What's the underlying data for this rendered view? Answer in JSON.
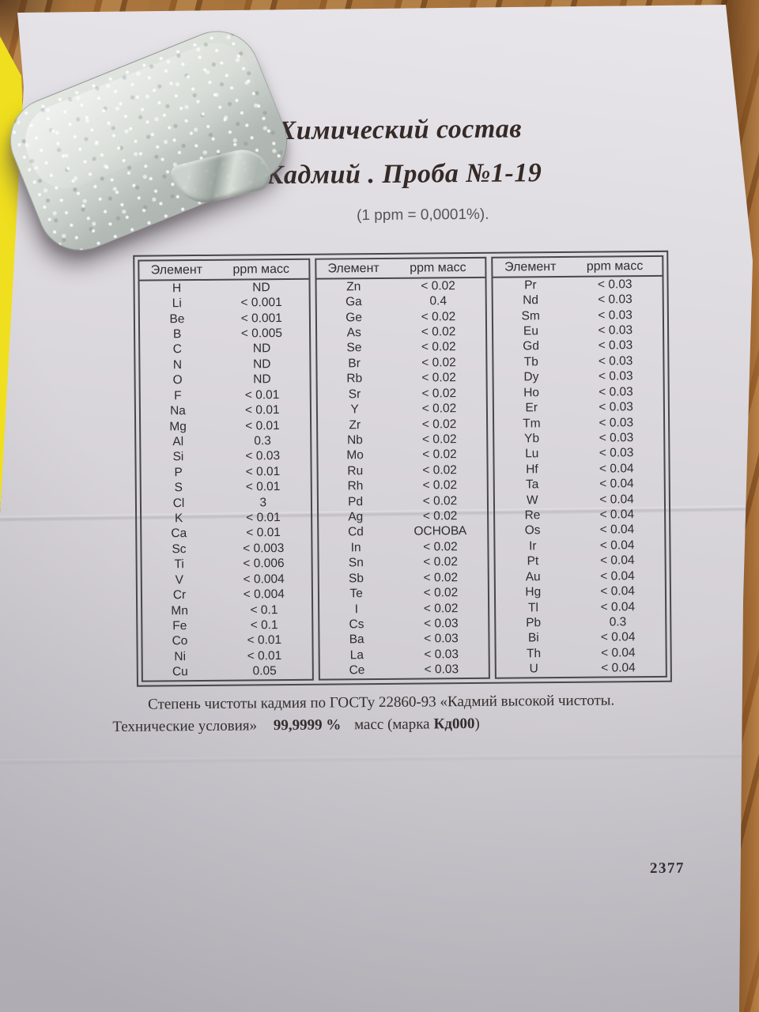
{
  "document": {
    "title_line1": "Химический состав",
    "title_line2": "Кадмий . Проба №1-19",
    "ppm_note": "(1 ppm = 0,0001%).",
    "table": {
      "headers": {
        "element": "Элемент",
        "ppm": "ppm масс"
      },
      "groups": [
        {
          "rows": [
            [
              "H",
              "ND"
            ],
            [
              "Li",
              "< 0.001"
            ],
            [
              "Be",
              "< 0.001"
            ],
            [
              "B",
              "< 0.005"
            ],
            [
              "C",
              "ND"
            ],
            [
              "N",
              "ND"
            ],
            [
              "O",
              "ND"
            ],
            [
              "F",
              "< 0.01"
            ],
            [
              "Na",
              "< 0.01"
            ],
            [
              "Mg",
              "< 0.01"
            ],
            [
              "Al",
              "0.3"
            ],
            [
              "Si",
              "< 0.03"
            ],
            [
              "P",
              "< 0.01"
            ],
            [
              "S",
              "< 0.01"
            ],
            [
              "Cl",
              "3"
            ],
            [
              "K",
              "< 0.01"
            ],
            [
              "Ca",
              "< 0.01"
            ],
            [
              "Sc",
              "< 0.003"
            ],
            [
              "Ti",
              "< 0.006"
            ],
            [
              "V",
              "< 0.004"
            ],
            [
              "Cr",
              "< 0.004"
            ],
            [
              "Mn",
              "< 0.1"
            ],
            [
              "Fe",
              "< 0.1"
            ],
            [
              "Co",
              "< 0.01"
            ],
            [
              "Ni",
              "< 0.01"
            ],
            [
              "Cu",
              "0.05"
            ]
          ]
        },
        {
          "rows": [
            [
              "Zn",
              "< 0.02"
            ],
            [
              "Ga",
              "0.4"
            ],
            [
              "Ge",
              "< 0.02"
            ],
            [
              "As",
              "< 0.02"
            ],
            [
              "Se",
              "< 0.02"
            ],
            [
              "Br",
              "< 0.02"
            ],
            [
              "Rb",
              "< 0.02"
            ],
            [
              "Sr",
              "< 0.02"
            ],
            [
              "Y",
              "< 0.02"
            ],
            [
              "Zr",
              "< 0.02"
            ],
            [
              "Nb",
              "< 0.02"
            ],
            [
              "Mo",
              "< 0.02"
            ],
            [
              "Ru",
              "< 0.02"
            ],
            [
              "Rh",
              "< 0.02"
            ],
            [
              "Pd",
              "< 0.02"
            ],
            [
              "Ag",
              "< 0.02"
            ],
            [
              "Cd",
              "ОСНОВА"
            ],
            [
              "In",
              "< 0.02"
            ],
            [
              "Sn",
              "< 0.02"
            ],
            [
              "Sb",
              "< 0.02"
            ],
            [
              "Te",
              "< 0.02"
            ],
            [
              "I",
              "< 0.02"
            ],
            [
              "Cs",
              "< 0.03"
            ],
            [
              "Ba",
              "< 0.03"
            ],
            [
              "La",
              "< 0.03"
            ],
            [
              "Ce",
              "< 0.03"
            ]
          ]
        },
        {
          "rows": [
            [
              "Pr",
              "< 0.03"
            ],
            [
              "Nd",
              "< 0.03"
            ],
            [
              "Sm",
              "< 0.03"
            ],
            [
              "Eu",
              "< 0.03"
            ],
            [
              "Gd",
              "< 0.03"
            ],
            [
              "Tb",
              "< 0.03"
            ],
            [
              "Dy",
              "< 0.03"
            ],
            [
              "Ho",
              "< 0.03"
            ],
            [
              "Er",
              "< 0.03"
            ],
            [
              "Tm",
              "< 0.03"
            ],
            [
              "Yb",
              "< 0.03"
            ],
            [
              "Lu",
              "< 0.03"
            ],
            [
              "Hf",
              "< 0.04"
            ],
            [
              "Ta",
              "< 0.04"
            ],
            [
              "W",
              "< 0.04"
            ],
            [
              "Re",
              "< 0.04"
            ],
            [
              "Os",
              "< 0.04"
            ],
            [
              "Ir",
              "< 0.04"
            ],
            [
              "Pt",
              "< 0.04"
            ],
            [
              "Au",
              "< 0.04"
            ],
            [
              "Hg",
              "< 0.04"
            ],
            [
              "Tl",
              "< 0.04"
            ],
            [
              "Pb",
              "0.3"
            ],
            [
              "Bi",
              "< 0.04"
            ],
            [
              "Th",
              "< 0.04"
            ],
            [
              "U",
              "< 0.04"
            ]
          ]
        }
      ]
    },
    "purity_note_line1": "Степень чистоты кадмия по ГОСТу 22860-93 «Кадмий высокой чистоты.",
    "purity_note_line2": {
      "prefix": "Технические условия»",
      "value": "99,9999 %",
      "mid": "масс (марка",
      "grade": "Кд000",
      "suffix": ")"
    },
    "page_number": "2377"
  },
  "colors": {
    "wood": "#b5793c",
    "paper": "#d8d5da",
    "yellow_sheet": "#e9d91f",
    "table_line": "#47474c",
    "title_ink": "#352a27",
    "body_ink": "#2c2c31",
    "ingot_metal": "#cdd3cd"
  }
}
